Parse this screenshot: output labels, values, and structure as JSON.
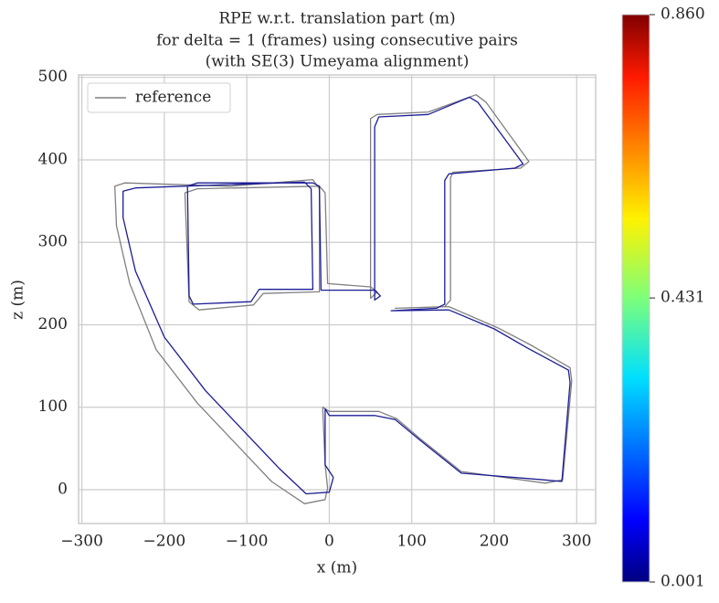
{
  "chart_data": {
    "type": "line",
    "title": [
      "RPE w.r.t. translation part (m)",
      "for delta = 1 (frames) using consecutive pairs",
      "(with SE(3) Umeyama alignment)"
    ],
    "x_label": "x (m)",
    "y_label": "z (m)",
    "xlim": [
      -304,
      323
    ],
    "ylim": [
      -41,
      503
    ],
    "xticks": [
      {
        "value": -300,
        "label": "−300"
      },
      {
        "value": -200,
        "label": "−200"
      },
      {
        "value": -100,
        "label": "−100"
      },
      0,
      100,
      200,
      300
    ],
    "yticks": [
      0,
      100,
      200,
      300,
      400,
      500
    ],
    "grid": true,
    "legend": "upper left",
    "series": [
      {
        "name": "reference",
        "color": "#808080",
        "x": [
          -2,
          -5,
          -30,
          -70,
          -160,
          -210,
          -242,
          -258,
          -260,
          -248,
          -120,
          -20,
          -12,
          -12,
          -80,
          -92,
          -158,
          -170,
          -175,
          -160,
          -12,
          -5,
          -2,
          50,
          58,
          50,
          50,
          58,
          120,
          178,
          190,
          242,
          232,
          150,
          147,
          147,
          140,
          80,
          145,
          205,
          245,
          292,
          294,
          283,
          262,
          160,
          110,
          82,
          60,
          0,
          -8,
          -5,
          -2
        ],
        "values": [
          2,
          -12,
          -17,
          10,
          105,
          170,
          250,
          320,
          368,
          372,
          368,
          376,
          365,
          240,
          238,
          224,
          218,
          228,
          360,
          365,
          368,
          360,
          250,
          246,
          240,
          232,
          450,
          455,
          458,
          479,
          470,
          398,
          390,
          385,
          378,
          230,
          222,
          220,
          222,
          196,
          175,
          148,
          132,
          12,
          8,
          22,
          62,
          86,
          95,
          95,
          100,
          30,
          2
        ]
      },
      {
        "color": "#1c1c96",
        "x": [
          5,
          0,
          -28,
          -60,
          -150,
          -200,
          -235,
          -250,
          -250,
          -235,
          -120,
          -30,
          -22,
          -20,
          -85,
          -95,
          -165,
          -170,
          -172,
          -160,
          -20,
          -12,
          -10,
          55,
          62,
          55,
          55,
          60,
          120,
          170,
          180,
          235,
          225,
          145,
          140,
          140,
          130,
          75,
          145,
          200,
          240,
          290,
          292,
          282,
          260,
          160,
          110,
          80,
          55,
          0,
          -5,
          -5,
          5
        ],
        "values": [
          15,
          -3,
          -5,
          25,
          120,
          185,
          265,
          330,
          362,
          366,
          370,
          373,
          365,
          243,
          243,
          228,
          225,
          235,
          368,
          372,
          372,
          368,
          242,
          242,
          235,
          230,
          440,
          452,
          455,
          476,
          470,
          395,
          390,
          383,
          375,
          225,
          220,
          217,
          218,
          195,
          172,
          145,
          130,
          10,
          12,
          20,
          60,
          85,
          90,
          90,
          98,
          30,
          15
        ]
      }
    ],
    "colorbar": {
      "colormap": "jet",
      "lim": [
        0.001,
        0.86
      ],
      "ticks": [
        0.001,
        0.431,
        {
          "value": 0.86,
          "label": "0.860"
        }
      ]
    }
  }
}
